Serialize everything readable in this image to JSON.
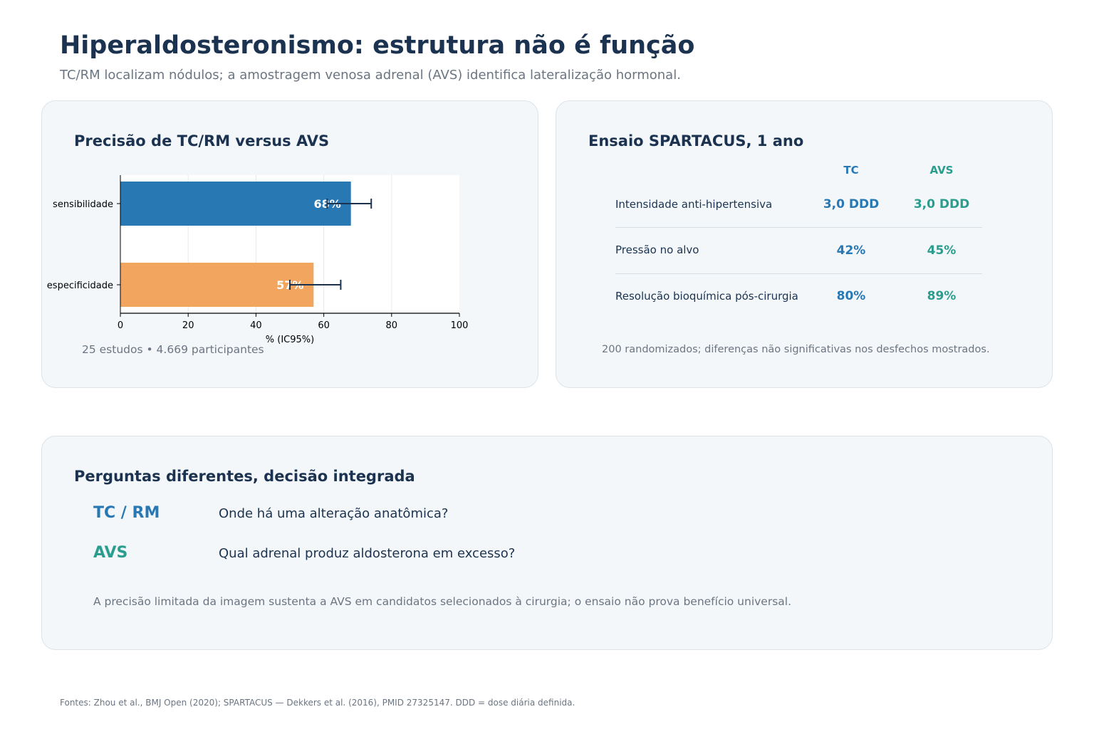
{
  "header": {
    "title": "Hiperaldosteronismo: estrutura não é função",
    "subtitle": "TC/RM localizam nódulos; a amostragem venosa adrenal (AVS) identifica lateralização hormonal."
  },
  "accuracy_card": {
    "title": "Precisão de TC/RM versus AVS",
    "note": "25 estudos • 4.669 participantes"
  },
  "trial_card": {
    "title": "Ensaio SPARTACUS, 1 ano",
    "col_tc": "TC",
    "col_avs": "AVS",
    "rows": [
      {
        "label": "Intensidade anti-hipertensiva",
        "tc": "3,0 DDD",
        "avs": "3,0 DDD"
      },
      {
        "label": "Pressão no alvo",
        "tc": "42%",
        "avs": "45%"
      },
      {
        "label": "Resolução bioquímica pós-cirurgia",
        "tc": "80%",
        "avs": "89%"
      }
    ],
    "note": "200 randomizados; diferenças não significativas nos desfechos mostrados."
  },
  "questions_card": {
    "title": "Perguntas diferentes, decisão integrada",
    "items": [
      {
        "key": "TC / RM",
        "text": "Onde há uma alteração anatômica?"
      },
      {
        "key": "AVS",
        "text": "Qual adrenal produz aldosterona em excesso?"
      }
    ],
    "note": "A precisão limitada da imagem sustenta a AVS em candidatos selecionados à cirurgia; o ensaio não prova benefício universal."
  },
  "footer": "Fontes: Zhou et al., BMJ Open (2020); SPARTACUS — Dekkers et al. (2016), PMID 27325147. DDD = dose diária definida.",
  "colors": {
    "tc": "#2878b4",
    "avs": "#2a9d8f",
    "bar_sensitivity": "#2878b4",
    "bar_specificity": "#f2a55f",
    "navy": "#1b3350"
  },
  "chart_data": {
    "type": "bar",
    "orientation": "horizontal",
    "categories": [
      "sensibilidade",
      "especificidade"
    ],
    "values": [
      68,
      57
    ],
    "ci_low": [
      61,
      50
    ],
    "ci_high": [
      74,
      65
    ],
    "data_labels": [
      "68%",
      "57%"
    ],
    "xlabel": "% (IC95%)",
    "ylabel": "",
    "xlim": [
      0,
      100
    ],
    "xticks": [
      0,
      20,
      40,
      60,
      80,
      100
    ],
    "grid": "vertical"
  }
}
